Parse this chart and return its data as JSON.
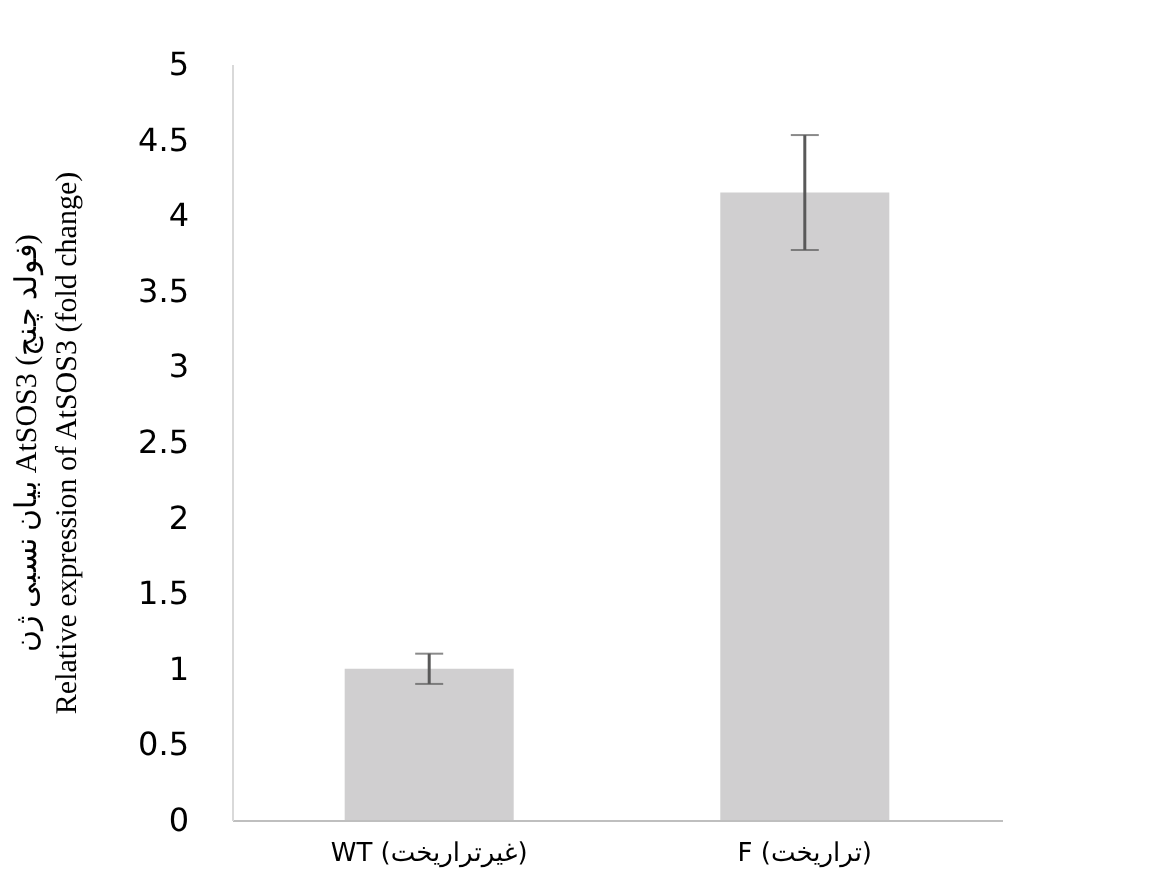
{
  "chart_data": {
    "type": "bar",
    "ylabel": "بیان نسبی ژن AtSOS3 (فولد چنج)\nRelative expression of AtSOS3 (fold change)",
    "categories": [
      "WT (غیرتراریخت)",
      "F (تراریخت)"
    ],
    "values": [
      1.0,
      4.15
    ],
    "errors": [
      0.1,
      0.38
    ],
    "color": "#d0cfd0",
    "ylim": [
      0,
      5
    ],
    "yticks": [
      0,
      0.5,
      1,
      1.5,
      2,
      2.5,
      3,
      3.5,
      4,
      4.5,
      5
    ],
    "grid": false
  }
}
